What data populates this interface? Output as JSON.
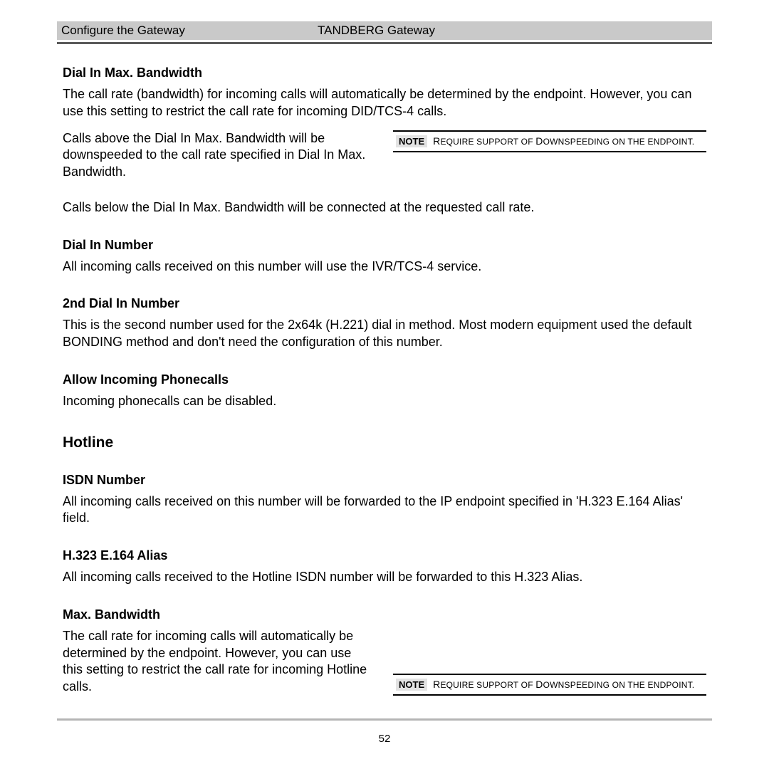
{
  "header": {
    "left": "Configure the Gateway",
    "center": "TANDBERG Gateway"
  },
  "sections": [
    {
      "heading": "Dial In Max. Bandwidth",
      "paragraphs": [
        "The call rate (bandwidth) for incoming calls will automatically be determined by the endpoint.  However, you can use this setting to restrict the call rate for incoming DID/TCS-4 calls."
      ],
      "row_left": "Calls above the Dial In Max. Bandwidth will be downspeeded to the call rate specified in Dial In Max. Bandwidth.",
      "note": {
        "label": "NOTE",
        "lead": "R",
        "rest": "EQUIRE SUPPORT OF ",
        "cap": "D",
        "tail": "OWNSPEEDING ON THE ENDPOINT."
      },
      "after_row": "Calls below the Dial In Max. Bandwidth will be connected at the requested call rate."
    },
    {
      "heading": "Dial In Number",
      "paragraphs": [
        "All incoming calls received on this number will use the IVR/TCS-4 service."
      ]
    },
    {
      "heading": "2nd Dial In Number",
      "paragraphs": [
        "This is the second number used for the 2x64k (H.221) dial in method. Most modern equipment used the default BONDING method and don't need the configuration of this number."
      ]
    },
    {
      "heading": "Allow Incoming Phonecalls",
      "paragraphs": [
        "Incoming phonecalls can be disabled."
      ]
    }
  ],
  "hotline_title": "Hotline",
  "hotline_sections": [
    {
      "heading": "ISDN Number",
      "paragraphs": [
        "All incoming calls received on this number will be forwarded to the IP endpoint specified in 'H.323 E.164 Alias' field."
      ]
    },
    {
      "heading": "H.323 E.164 Alias",
      "paragraphs": [
        "All incoming calls received to the Hotline ISDN number will be forwarded to this H.323 Alias."
      ]
    },
    {
      "heading": "Max. Bandwidth",
      "row_left": "The call rate for incoming calls will automatically be determined by the endpoint.  However, you can use this setting to restrict the call rate for incoming Hotline calls.",
      "note": {
        "label": "NOTE",
        "lead": "R",
        "rest": "EQUIRE SUPPORT OF ",
        "cap": "D",
        "tail": "OWNSPEEDING ON THE ENDPOINT."
      }
    }
  ],
  "page_number": "52"
}
